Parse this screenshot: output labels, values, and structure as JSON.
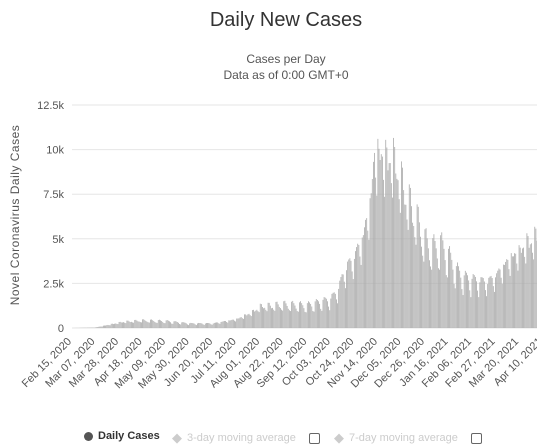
{
  "chart_data": {
    "type": "bar",
    "title": "Daily New Cases",
    "subtitle_lines": [
      "Cases per Day",
      "Data as of 0:00 GMT+0"
    ],
    "xlabel": "",
    "ylabel": "Novel Coronavirus Daily Cases",
    "ylim": [
      0,
      12500
    ],
    "yticks": [
      0,
      2500,
      5000,
      7500,
      10000,
      12500
    ],
    "ytick_labels": [
      "0",
      "2.5k",
      "5k",
      "7.5k",
      "10k",
      "12.5k"
    ],
    "grid": true,
    "x_start": "2020-02-15",
    "x_end": "2021-04-05",
    "xtick_labels": [
      "Feb 15, 2020",
      "Mar 07, 2020",
      "Mar 28, 2020",
      "Apr 18, 2020",
      "May 09, 2020",
      "May 30, 2020",
      "Jun 20, 2020",
      "Jul 11, 2020",
      "Aug 01, 2020",
      "Aug 22, 2020",
      "Sep 12, 2020",
      "Oct 03, 2020",
      "Oct 24, 2020",
      "Nov 14, 2020",
      "Dec 05, 2020",
      "Dec 26, 2020",
      "Jan 16, 2021",
      "Feb 06, 2021",
      "Feb 27, 2021",
      "Mar 20, 2021",
      "Apr 10, 2021"
    ],
    "series": [
      {
        "name": "Daily Cases",
        "color": "#aaaaaa",
        "trend_points": [
          [
            "2020-02-15",
            0
          ],
          [
            "2020-03-07",
            30
          ],
          [
            "2020-03-20",
            200
          ],
          [
            "2020-04-01",
            350
          ],
          [
            "2020-04-18",
            420
          ],
          [
            "2020-05-09",
            380
          ],
          [
            "2020-05-30",
            250
          ],
          [
            "2020-06-20",
            260
          ],
          [
            "2020-07-11",
            500
          ],
          [
            "2020-07-25",
            900
          ],
          [
            "2020-08-01",
            1200
          ],
          [
            "2020-08-22",
            1300
          ],
          [
            "2020-09-12",
            1250
          ],
          [
            "2020-10-03",
            1600
          ],
          [
            "2020-10-10",
            2200
          ],
          [
            "2020-10-15",
            3200
          ],
          [
            "2020-10-24",
            4000
          ],
          [
            "2020-11-01",
            5200
          ],
          [
            "2020-11-07",
            7000
          ],
          [
            "2020-11-11",
            9800
          ],
          [
            "2020-11-14",
            9900
          ],
          [
            "2020-11-21",
            9600
          ],
          [
            "2020-11-28",
            9500
          ],
          [
            "2020-12-05",
            8200
          ],
          [
            "2020-12-12",
            7000
          ],
          [
            "2020-12-19",
            6000
          ],
          [
            "2020-12-26",
            4800
          ],
          [
            "2021-01-02",
            4400
          ],
          [
            "2021-01-09",
            4600
          ],
          [
            "2021-01-16",
            4000
          ],
          [
            "2021-01-23",
            3200
          ],
          [
            "2021-01-30",
            2800
          ],
          [
            "2021-02-06",
            2700
          ],
          [
            "2021-02-13",
            2600
          ],
          [
            "2021-02-20",
            2600
          ],
          [
            "2021-02-27",
            2900
          ],
          [
            "2021-03-06",
            3500
          ],
          [
            "2021-03-13",
            4000
          ],
          [
            "2021-03-20",
            4300
          ],
          [
            "2021-03-27",
            4800
          ],
          [
            "2021-04-05",
            5100
          ]
        ]
      }
    ]
  },
  "legend": {
    "items": [
      {
        "label": "Daily Cases",
        "color": "#555555",
        "active": true,
        "marker": "circle"
      },
      {
        "label": "3-day moving average",
        "color": "#cccccc",
        "active": false,
        "marker": "box"
      },
      {
        "label": "7-day moving average",
        "color": "#cccccc",
        "active": false,
        "marker": "box"
      }
    ]
  }
}
